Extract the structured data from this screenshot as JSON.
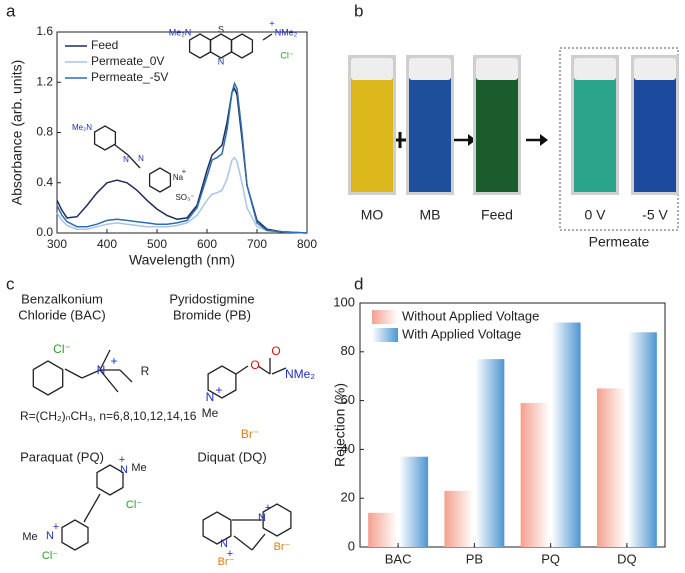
{
  "panels": [
    "a",
    "b",
    "c",
    "d"
  ],
  "chart_data": [
    {
      "type": "line",
      "xlabel": "Wavelength (nm)",
      "ylabel": "Absorbance (arb. units)",
      "x": [
        300,
        310,
        320,
        340,
        360,
        380,
        400,
        420,
        440,
        460,
        480,
        500,
        520,
        540,
        560,
        580,
        600,
        610,
        620,
        630,
        640,
        650,
        655,
        660,
        670,
        680,
        700,
        720,
        750,
        800
      ],
      "series": [
        {
          "name": "Feed",
          "color": "#1f2f5a",
          "values": [
            0.26,
            0.18,
            0.12,
            0.13,
            0.22,
            0.32,
            0.4,
            0.42,
            0.4,
            0.34,
            0.26,
            0.19,
            0.14,
            0.11,
            0.12,
            0.22,
            0.5,
            0.62,
            0.66,
            0.7,
            0.88,
            1.12,
            1.15,
            1.1,
            0.75,
            0.38,
            0.1,
            0.03,
            0.01,
            0
          ]
        },
        {
          "name": "Permeate_0V",
          "color": "#a9c4e8",
          "values": [
            0.16,
            0.1,
            0.06,
            0.03,
            0.03,
            0.05,
            0.07,
            0.08,
            0.07,
            0.06,
            0.05,
            0.05,
            0.05,
            0.06,
            0.08,
            0.14,
            0.26,
            0.31,
            0.32,
            0.34,
            0.43,
            0.58,
            0.6,
            0.57,
            0.4,
            0.2,
            0.05,
            0.02,
            0.01,
            0
          ]
        },
        {
          "name": "Permeate_-5V",
          "color": "#2e6db4",
          "values": [
            0.22,
            0.14,
            0.09,
            0.05,
            0.05,
            0.07,
            0.1,
            0.11,
            0.1,
            0.09,
            0.08,
            0.07,
            0.07,
            0.08,
            0.1,
            0.2,
            0.45,
            0.58,
            0.6,
            0.63,
            0.82,
            1.12,
            1.19,
            1.15,
            0.8,
            0.38,
            0.08,
            0.02,
            0.01,
            0
          ]
        }
      ],
      "xlim": [
        300,
        800
      ],
      "xticks": [
        300,
        400,
        500,
        600,
        700,
        800
      ],
      "ylim": [
        0,
        1.6
      ],
      "yticks": [
        {
          "value": 0,
          "label": "0.0"
        },
        0.4,
        0.8,
        1.2,
        1.6
      ],
      "legend": "upper left"
    },
    {
      "type": "bar",
      "ylabel": "Rejection (%)",
      "categories": [
        "BAC",
        "PB",
        "PQ",
        "DQ"
      ],
      "series": [
        {
          "name": "Without Applied Voltage",
          "color": "#f4a08e",
          "values": [
            14,
            23,
            59,
            65
          ]
        },
        {
          "name": "With Applied Voltage",
          "color": "#4f95d0",
          "values": [
            37,
            77,
            92,
            88
          ]
        }
      ],
      "ylim": [
        0,
        100
      ],
      "yticks": [
        0,
        20,
        40,
        60,
        80,
        100
      ],
      "legend": "upper left"
    }
  ],
  "insets": {
    "mb": [
      "Me₂N",
      "S",
      "N",
      "+",
      "NMe₂",
      "Cl⁻"
    ],
    "mo": [
      "Me₂N",
      "N",
      "N",
      "Na",
      "+",
      "SO₃⁻"
    ]
  },
  "photo": {
    "labels": [
      "MO",
      "MB",
      "Feed",
      "0 V",
      "-5 V"
    ],
    "group": "Permeate"
  },
  "structures": [
    {
      "title": [
        "Benzalkonium",
        "Chloride (BAC)"
      ],
      "atoms": [
        "Cl⁻",
        "N",
        "+",
        "R"
      ],
      "note": "R=(CH₂)ₙCH₃, n=6,8,10,12,14,16"
    },
    {
      "title": [
        "Pyridostigmine",
        "Bromide (PB)"
      ],
      "atoms": [
        "N",
        "+",
        "Me",
        "O",
        "O",
        "NMe₂",
        "Br⁻"
      ]
    },
    {
      "title": [
        "Paraquat (PQ)"
      ],
      "atoms": [
        "+",
        "N",
        "Me",
        "Cl⁻",
        "Me",
        "N",
        "+",
        "Cl⁻"
      ]
    },
    {
      "title": [
        "Diquat (DQ)"
      ],
      "atoms": [
        "N",
        "+",
        "Br⁻",
        "N",
        "+",
        "Br⁻"
      ]
    }
  ]
}
